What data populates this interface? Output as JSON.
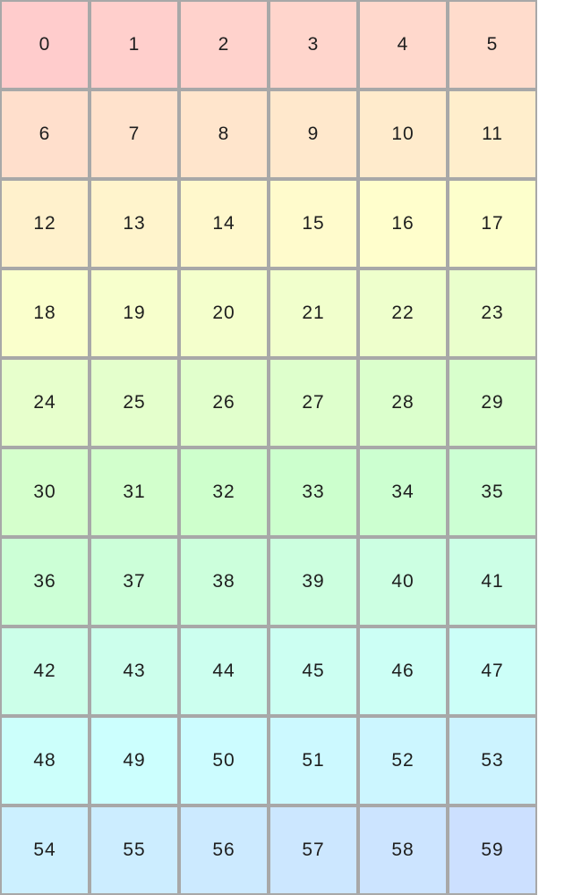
{
  "grid": {
    "columns": 6,
    "start_color": "#ffcccc",
    "end_color": "#cce0ff",
    "border_color": "#a8a8a8",
    "cells": [
      "0",
      "1",
      "2",
      "3",
      "4",
      "5",
      "6",
      "7",
      "8",
      "9",
      "10",
      "11",
      "12",
      "13",
      "14",
      "15",
      "16",
      "17",
      "18",
      "19",
      "20",
      "21",
      "22",
      "23",
      "24",
      "25",
      "26",
      "27",
      "28",
      "29",
      "30",
      "31",
      "32",
      "33",
      "34",
      "35",
      "36",
      "37",
      "38",
      "39",
      "40",
      "41",
      "42",
      "43",
      "44",
      "45",
      "46",
      "47",
      "48",
      "49",
      "50",
      "51",
      "52",
      "53",
      "54",
      "55",
      "56",
      "57",
      "58",
      "59"
    ]
  }
}
